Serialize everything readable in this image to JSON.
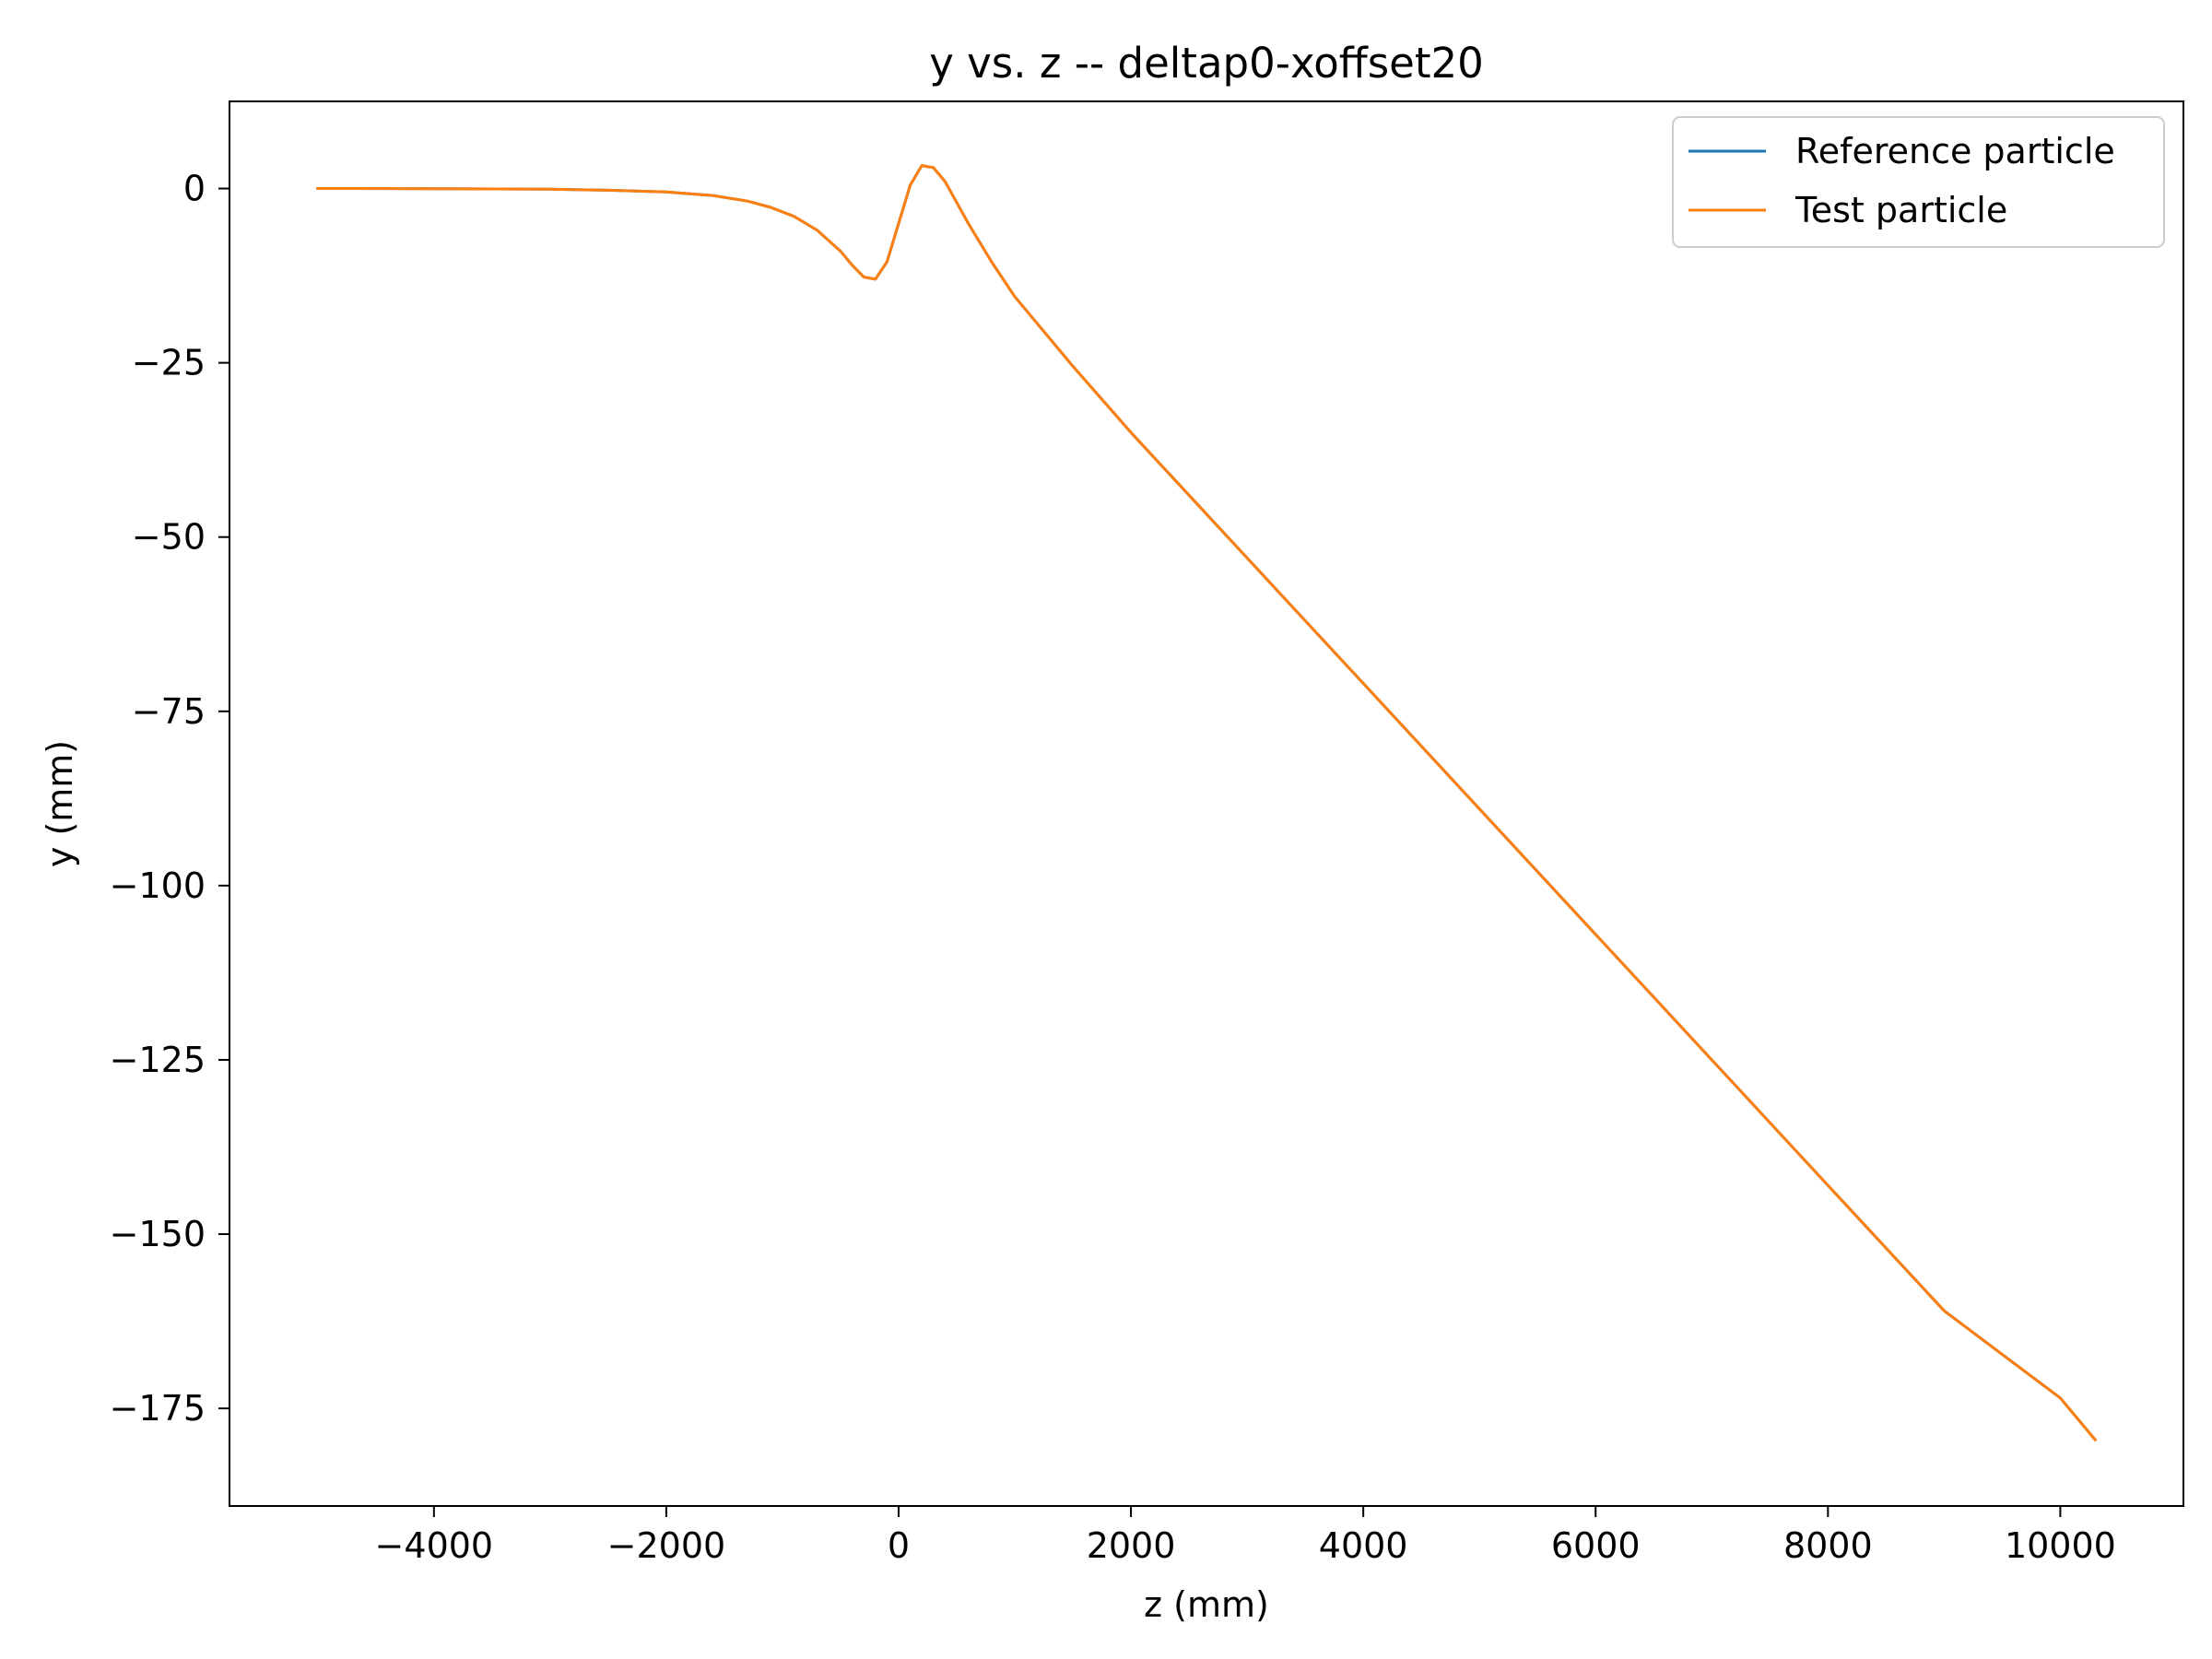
{
  "chart_data": {
    "type": "line",
    "title": "y vs. z -- deltap0-xoffset20",
    "xlabel": "z (mm)",
    "ylabel": "y (mm)",
    "xlim": [
      -5760,
      11060
    ],
    "ylim": [
      -189,
      12.5
    ],
    "xticks": [
      -4000,
      -2000,
      0,
      2000,
      4000,
      6000,
      8000,
      10000
    ],
    "xtick_labels": [
      "−4000",
      "−2000",
      "0",
      "2000",
      "4000",
      "6000",
      "8000",
      "10000"
    ],
    "yticks": [
      0,
      -25,
      -50,
      -75,
      -100,
      -125,
      -150,
      -175
    ],
    "ytick_labels": [
      "0",
      "−25",
      "−50",
      "−75",
      "−100",
      "−125",
      "−150",
      "−175"
    ],
    "grid": false,
    "legend_position": "top-right",
    "series": [
      {
        "name": "Reference particle",
        "color": "#1f77b4",
        "x": [
          -5000,
          -4000,
          -3000,
          -2500,
          -2000,
          -1600,
          -1300,
          -1100,
          -900,
          -700,
          -500,
          -400,
          -300,
          -200,
          -100,
          0,
          100,
          200,
          300,
          400,
          500,
          600,
          800,
          1000,
          1500,
          2000,
          3000,
          4000,
          5000,
          6000,
          7000,
          8000,
          9000,
          10000,
          10300
        ],
        "y": [
          0.0,
          -0.02,
          -0.1,
          -0.25,
          -0.5,
          -1.0,
          -1.8,
          -2.7,
          -4.0,
          -6.0,
          -9.0,
          -11.0,
          -12.7,
          -13.0,
          -10.5,
          -5.0,
          0.5,
          3.3,
          3.0,
          1.0,
          -2.0,
          -5.0,
          -10.5,
          -15.5,
          -25.5,
          -35.0,
          -53.0,
          -71.0,
          -89.0,
          -107.0,
          -125.0,
          -143.0,
          -161.0,
          -173.5,
          -179.5
        ]
      },
      {
        "name": "Test particle",
        "color": "#ff7f0e",
        "x": [
          -5000,
          -4000,
          -3000,
          -2500,
          -2000,
          -1600,
          -1300,
          -1100,
          -900,
          -700,
          -500,
          -400,
          -300,
          -200,
          -100,
          0,
          100,
          200,
          300,
          400,
          500,
          600,
          800,
          1000,
          1500,
          2000,
          3000,
          4000,
          5000,
          6000,
          7000,
          8000,
          9000,
          10000,
          10300
        ],
        "y": [
          0.0,
          -0.02,
          -0.1,
          -0.25,
          -0.5,
          -1.0,
          -1.8,
          -2.7,
          -4.0,
          -6.0,
          -9.0,
          -11.0,
          -12.7,
          -13.0,
          -10.5,
          -5.0,
          0.5,
          3.3,
          3.0,
          1.0,
          -2.0,
          -5.0,
          -10.5,
          -15.5,
          -25.5,
          -35.0,
          -53.0,
          -71.0,
          -89.0,
          -107.0,
          -125.0,
          -143.0,
          -161.0,
          -173.5,
          -179.5
        ]
      }
    ]
  }
}
